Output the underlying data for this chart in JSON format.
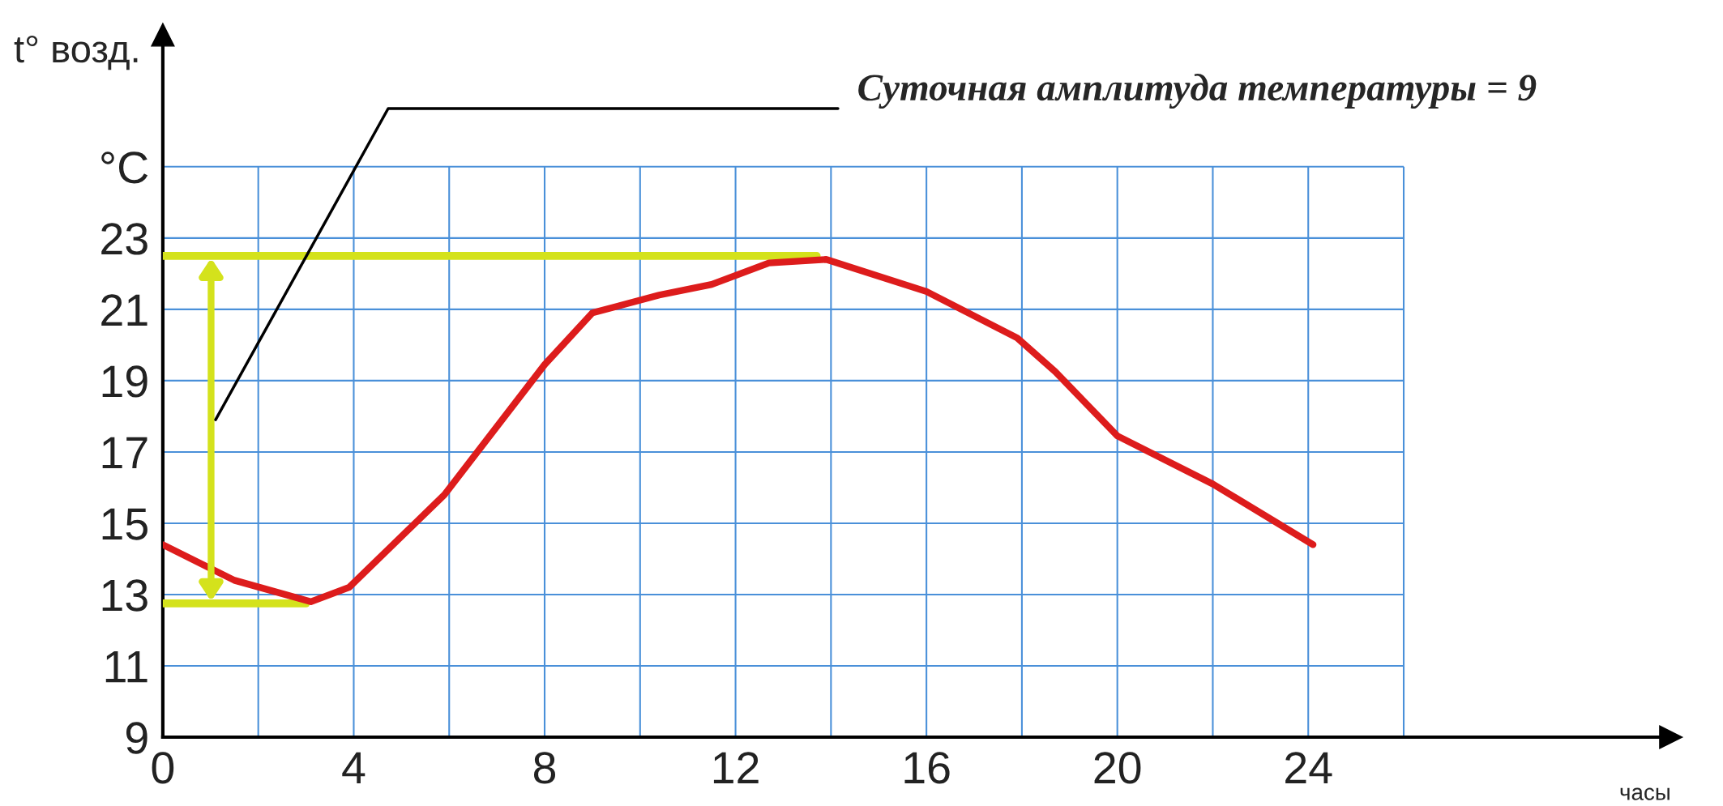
{
  "chart_data": {
    "type": "line",
    "xlabel": "часы",
    "ylabel": "t° возд.",
    "annotations": [
      "Суточная амплитуда температуры = 9"
    ],
    "series": [
      {
        "color": "#dd1c1c",
        "x": [
          0,
          1.5,
          3.1,
          3.9,
          5.9,
          8.0,
          9.0,
          10.4,
          11.5,
          12.7,
          13.9,
          16.0,
          17.9,
          18.7,
          20.0,
          22.0,
          24.1
        ],
        "values": [
          14.4,
          13.4,
          12.8,
          13.2,
          15.8,
          19.45,
          20.9,
          21.4,
          21.7,
          22.3,
          22.4,
          21.5,
          20.2,
          19.25,
          17.45,
          16.1,
          14.4
        ]
      },
      {
        "color": "#d4e21c",
        "x": [
          0,
          13.7
        ],
        "values": [
          22.5,
          22.5
        ]
      },
      {
        "color": "#d4e21c",
        "x": [
          0,
          3.0
        ],
        "values": [
          12.75,
          12.75
        ]
      }
    ],
    "xlim": [
      0,
      31.6
    ],
    "ylim": [
      9,
      28.7
    ],
    "xticks": [
      0,
      {
        "value": 2,
        "label": null
      },
      4,
      {
        "value": 6,
        "label": null
      },
      8,
      {
        "value": 10,
        "label": null
      },
      12,
      {
        "value": 14,
        "label": null
      },
      16,
      {
        "value": 18,
        "label": null
      },
      20,
      {
        "value": 22,
        "label": null
      },
      24,
      {
        "value": 26,
        "label": null
      }
    ],
    "yticks": [
      9,
      11,
      13,
      15,
      17,
      19,
      21,
      23,
      {
        "value": 25,
        "label": "°C"
      }
    ],
    "grid": true
  }
}
